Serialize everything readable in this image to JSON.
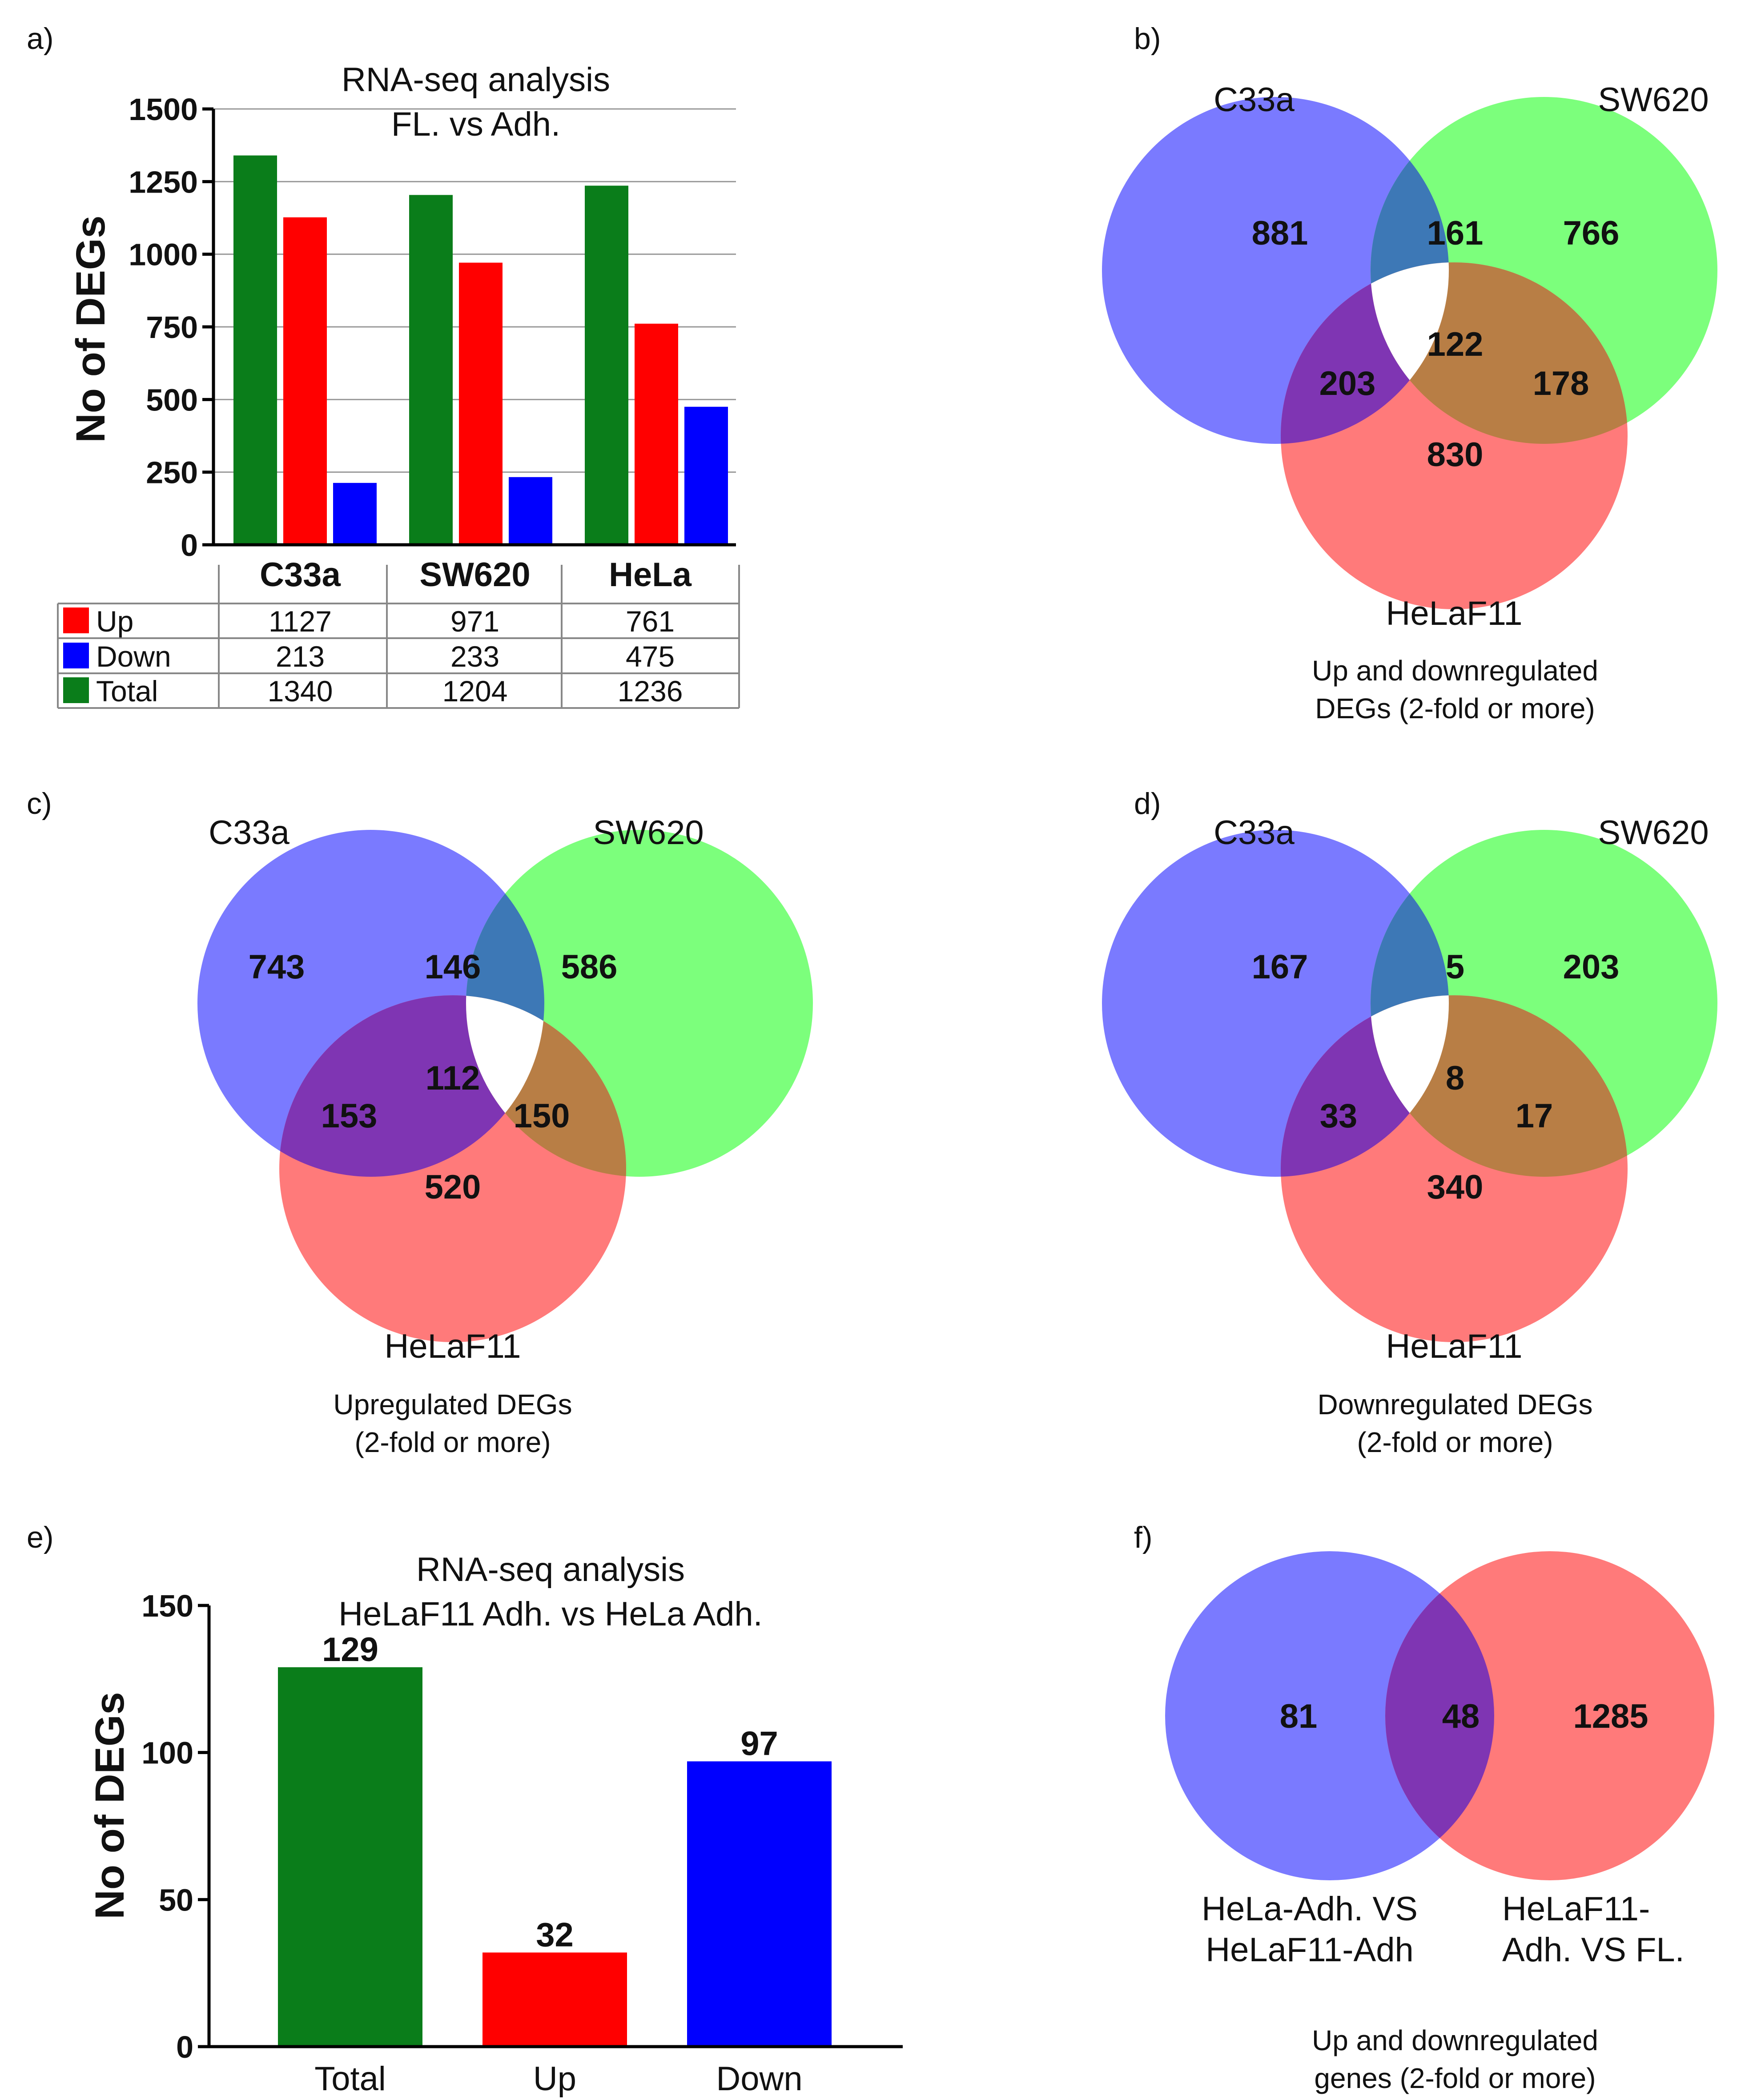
{
  "panels": {
    "a": {
      "label": "a)"
    },
    "b": {
      "label": "b)"
    },
    "c": {
      "label": "c)"
    },
    "d": {
      "label": "d)"
    },
    "e": {
      "label": "e)"
    },
    "f": {
      "label": "f)"
    }
  },
  "colors": {
    "green": "#0a7d1a",
    "red": "#ff0000",
    "blue": "#0000ff",
    "venn_blue": "#6e6ef5",
    "venn_green": "#6cf06c",
    "venn_red": "#fa7272"
  },
  "chart_data": [
    {
      "id": "a",
      "type": "bar",
      "title": "RNA-seq analysis",
      "subtitle": "FL. vs Adh.",
      "ylabel": "No of DEGs",
      "xlabel": "",
      "ylim": [
        0,
        1500
      ],
      "yticks": [
        "0",
        "250",
        "500",
        "750",
        "1000",
        "1250",
        "1500"
      ],
      "grid": true,
      "categories": [
        "C33a",
        "SW620",
        "HeLa"
      ],
      "series": [
        {
          "name": "Total",
          "color": "#0a7d1a",
          "values": [
            1340,
            1204,
            1236
          ]
        },
        {
          "name": "Up",
          "color": "#ff0000",
          "values": [
            1127,
            971,
            761
          ]
        },
        {
          "name": "Down",
          "color": "#0000ff",
          "values": [
            213,
            233,
            475
          ]
        }
      ],
      "table": {
        "rows": [
          {
            "name": "Up",
            "color": "#ff0000",
            "cells": [
              "1127",
              "971",
              "761"
            ]
          },
          {
            "name": "Down",
            "color": "#0000ff",
            "cells": [
              "213",
              "233",
              "475"
            ]
          },
          {
            "name": "Total",
            "color": "#0a7d1a",
            "cells": [
              "1340",
              "1204",
              "1236"
            ]
          }
        ]
      }
    },
    {
      "id": "b",
      "type": "venn3",
      "sets": [
        "C33a",
        "SW620",
        "HeLaF11"
      ],
      "regions": {
        "a": "881",
        "ab": "161",
        "b": "766",
        "abc": "122",
        "ac": "203",
        "bc": "178",
        "c": "830"
      },
      "caption": [
        "Up and downregulated",
        "DEGs (2-fold or more)"
      ]
    },
    {
      "id": "c",
      "type": "venn3",
      "sets": [
        "C33a",
        "SW620",
        "HeLaF11"
      ],
      "regions": {
        "a": "743",
        "ab": "146",
        "b": "586",
        "abc": "112",
        "ac": "153",
        "bc": "150",
        "c": "520"
      },
      "caption": [
        "Upregulated DEGs",
        "(2-fold or more)"
      ]
    },
    {
      "id": "d",
      "type": "venn3",
      "sets": [
        "C33a",
        "SW620",
        "HeLaF11"
      ],
      "regions": {
        "a": "167",
        "ab": "5",
        "b": "203",
        "abc": "8",
        "ac": "33",
        "bc": "17",
        "c": "340"
      },
      "caption": [
        "Downregulated DEGs",
        "(2-fold or more)"
      ]
    },
    {
      "id": "e",
      "type": "bar",
      "title": "RNA-seq analysis",
      "subtitle": "HeLaF11 Adh. vs HeLa Adh.",
      "ylabel": "No of DEGs",
      "xlabel": "",
      "ylim": [
        0,
        150
      ],
      "yticks": [
        "0",
        "50",
        "100",
        "150"
      ],
      "grid": false,
      "categories": [
        "Total",
        "Up",
        "Down"
      ],
      "values": [
        129,
        32,
        97
      ],
      "value_labels": [
        "129",
        "32",
        "97"
      ],
      "colors": [
        "#0a7d1a",
        "#ff0000",
        "#0000ff"
      ]
    },
    {
      "id": "f",
      "type": "venn2",
      "sets": [
        [
          "HeLa-Adh. VS",
          "HeLaF11-Adh"
        ],
        [
          "HeLaF11-",
          "Adh. VS FL."
        ]
      ],
      "regions": {
        "a": "81",
        "ab": "48",
        "b": "1285"
      },
      "caption": [
        "Up and downregulated",
        "genes (2-fold or more)"
      ]
    }
  ]
}
